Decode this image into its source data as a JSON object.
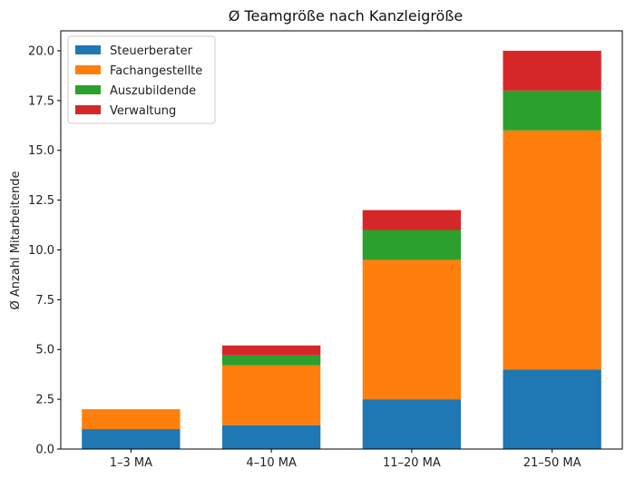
{
  "chart_data": {
    "type": "bar",
    "stacked": true,
    "title": "Ø Teamgröße nach Kanzleigröße",
    "xlabel": "",
    "ylabel": "Ø Anzahl Mitarbeitende",
    "categories": [
      "1–3 MA",
      "4–10 MA",
      "11–20 MA",
      "21–50 MA"
    ],
    "ylim": [
      0,
      21
    ],
    "yticks": [
      0.0,
      2.5,
      5.0,
      7.5,
      10.0,
      12.5,
      15.0,
      17.5,
      20.0
    ],
    "ytick_labels": [
      "0.0",
      "2.5",
      "5.0",
      "7.5",
      "10.0",
      "12.5",
      "15.0",
      "17.5",
      "20.0"
    ],
    "grid": false,
    "legend_position": "top-left",
    "series": [
      {
        "name": "Steuerberater",
        "color": "#1f77b4",
        "values": [
          1.0,
          1.2,
          2.5,
          4.0
        ]
      },
      {
        "name": "Fachangestellte",
        "color": "#ff7f0e",
        "values": [
          1.0,
          3.0,
          7.0,
          12.0
        ]
      },
      {
        "name": "Auszubildende",
        "color": "#2ca02c",
        "values": [
          0.0,
          0.5,
          1.5,
          2.0
        ]
      },
      {
        "name": "Verwaltung",
        "color": "#d62728",
        "values": [
          0.0,
          0.5,
          1.0,
          2.0
        ]
      }
    ]
  }
}
